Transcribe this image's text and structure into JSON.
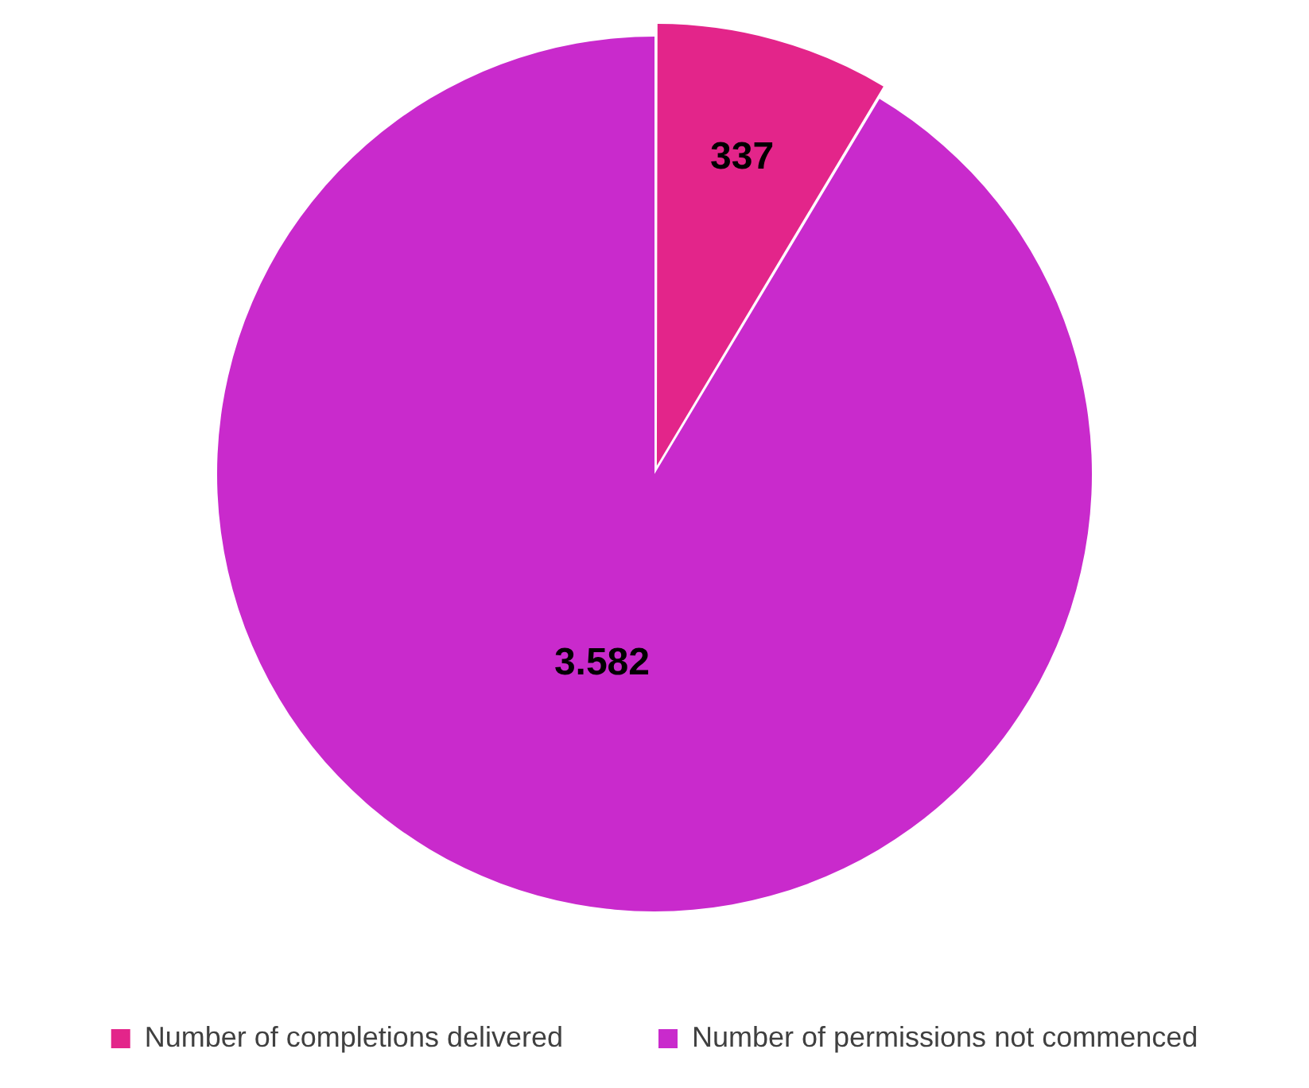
{
  "chart_data": {
    "type": "pie",
    "categories": [
      "Number of completions delivered",
      "Number of permissions not commenced"
    ],
    "values": [
      337,
      3582
    ],
    "colors": [
      "#e3258a",
      "#c92acc"
    ],
    "value_labels": [
      "337",
      "3.582"
    ],
    "legend": "bottom"
  }
}
